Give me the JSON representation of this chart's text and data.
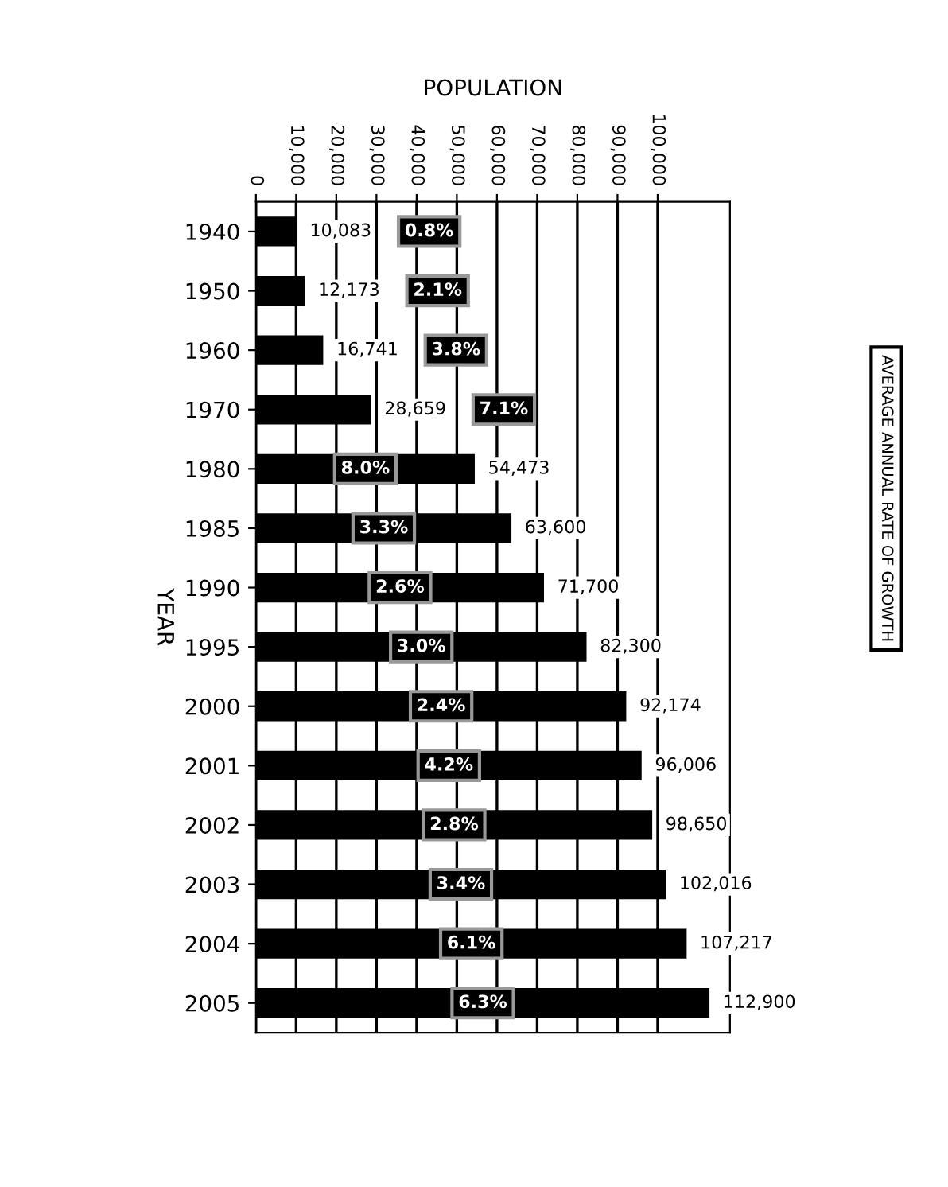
{
  "chart_data": {
    "type": "bar",
    "orientation": "horizontal",
    "xlabel": "POPULATION",
    "ylabel": "YEAR",
    "categories": [
      "1940",
      "1950",
      "1960",
      "1970",
      "1980",
      "1985",
      "1990",
      "1995",
      "2000",
      "2001",
      "2002",
      "2003",
      "2004",
      "2005"
    ],
    "values": [
      10083,
      12173,
      16741,
      28659,
      54473,
      63600,
      71700,
      82300,
      92174,
      96006,
      98650,
      102016,
      107217,
      112900
    ],
    "value_labels": [
      "10,083",
      "12,173",
      "16,741",
      "28,659",
      "54,473",
      "63,600",
      "71,700",
      "82,300",
      "92,174",
      "96,006",
      "98,650",
      "102,016",
      "107,217",
      "112,900"
    ],
    "color": "#000000",
    "xlim": [
      0,
      118000
    ],
    "xticks": [
      0,
      {
        "value": 10000,
        "label": "10,000"
      },
      {
        "value": 20000,
        "label": "20,000"
      },
      {
        "value": 30000,
        "label": "30,000"
      },
      {
        "value": 40000,
        "label": "40,000"
      },
      {
        "value": 50000,
        "label": "50,000"
      },
      {
        "value": 60000,
        "label": "60,000"
      },
      {
        "value": 70000,
        "label": "70,000"
      },
      {
        "value": 80000,
        "label": "80,000"
      },
      {
        "value": 90000,
        "label": "90,000"
      },
      {
        "value": 100000,
        "label": "100,000"
      }
    ],
    "grid": "x",
    "annotations": [
      "AVERAGE ANNUAL RATE OF GROWTH",
      {
        "text": "0.8%",
        "y": "1940"
      },
      {
        "text": "2.1%",
        "y": "1950"
      },
      {
        "text": "3.8%",
        "y": "1960"
      },
      {
        "text": "7.1%",
        "y": "1970"
      },
      {
        "text": "8.0%",
        "y": "1980"
      },
      {
        "text": "3.3%",
        "y": "1985"
      },
      {
        "text": "2.6%",
        "y": "1990"
      },
      {
        "text": "3.0%",
        "y": "1995"
      },
      {
        "text": "2.4%",
        "y": "2000"
      },
      {
        "text": "4.2%",
        "y": "2001"
      },
      {
        "text": "2.8%",
        "y": "2002"
      },
      {
        "text": "3.4%",
        "y": "2003"
      },
      {
        "text": "6.1%",
        "y": "2004"
      },
      {
        "text": "6.3%",
        "y": "2005"
      }
    ]
  }
}
